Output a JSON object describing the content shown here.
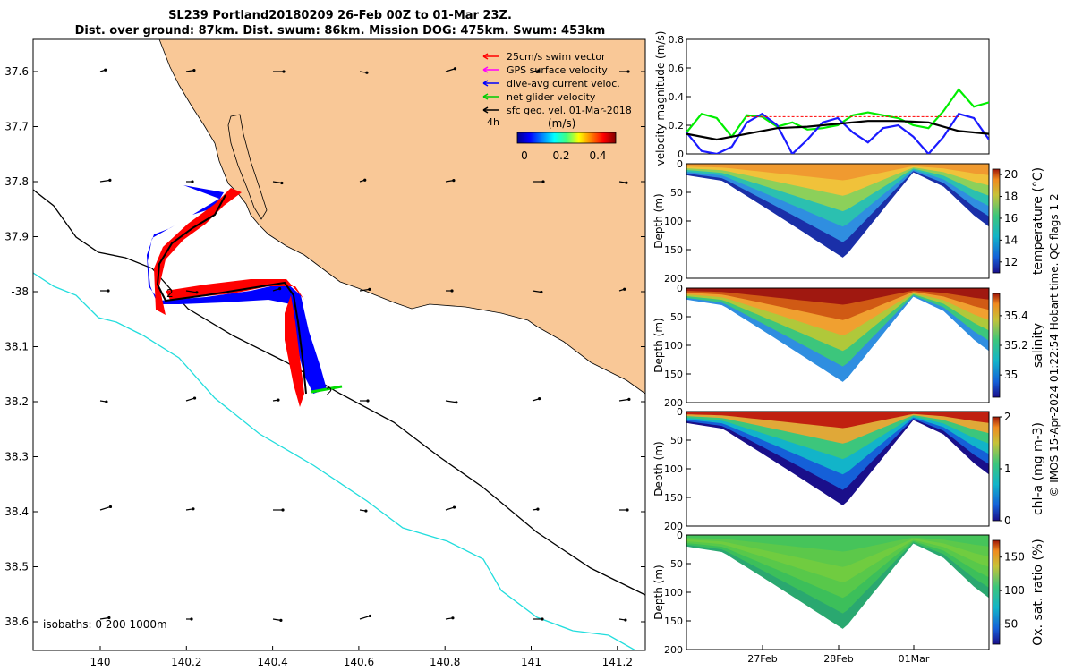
{
  "title": {
    "line1": "SL239 Portland20180209 26-Feb 00Z to 01-Mar 23Z.",
    "line2": "Dist. over ground: 87km. Dist. swum: 86km. Mission DOG: 475km. Swum: 453km"
  },
  "map": {
    "lat_ticks": [
      "37.6",
      "37.7",
      "37.8",
      "37.9",
      "-38",
      "38.1",
      "38.2",
      "38.3",
      "38.4",
      "38.5",
      "38.6"
    ],
    "lon_ticks": [
      "140",
      "140.2",
      "140.4",
      "140.6",
      "140.8",
      "141",
      "141.2"
    ],
    "legend": [
      {
        "label": "25cm/s swim vector",
        "color": "#ff0000"
      },
      {
        "label": "GPS surface velocity",
        "color": "#ff00ff"
      },
      {
        "label": "dive-avg current veloc.",
        "color": "#0000ff"
      },
      {
        "label": "net glider velocity",
        "color": "#00cc00"
      },
      {
        "label": "sfc geo. vel. 01-Mar-2018",
        "color": "#000000"
      }
    ],
    "interval_label": "4h",
    "colorbar_title": "(m/s)",
    "colorbar_ticks": [
      "0",
      "0.2",
      "0.4"
    ],
    "isobaths_label": "isobaths: 0   200  1000m",
    "marker_label": "2",
    "land_color": "#f9c897",
    "isobath_200_color": "#000000",
    "isobath_1000_color": "#22dddd"
  },
  "chart_data": [
    {
      "type": "line",
      "title": "",
      "ylabel": "velocity magnitude (m/s)",
      "ylim": [
        0,
        0.8
      ],
      "yticks": [
        "0",
        "0.2",
        "0.4",
        "0.6",
        "0.8"
      ],
      "x_days_span": [
        0,
        4
      ],
      "series": [
        {
          "color": "#00ee00",
          "x": [
            0,
            0.2,
            0.4,
            0.6,
            0.8,
            1.0,
            1.2,
            1.4,
            1.6,
            1.8,
            2.0,
            2.2,
            2.4,
            2.6,
            2.8,
            3.0,
            3.2,
            3.4,
            3.6,
            3.8,
            4.0
          ],
          "values": [
            0.15,
            0.28,
            0.25,
            0.12,
            0.27,
            0.26,
            0.19,
            0.22,
            0.17,
            0.18,
            0.2,
            0.27,
            0.29,
            0.27,
            0.25,
            0.2,
            0.18,
            0.3,
            0.45,
            0.33,
            0.36
          ]
        },
        {
          "color": "#1a1aff",
          "x": [
            0,
            0.2,
            0.4,
            0.6,
            0.8,
            1.0,
            1.2,
            1.4,
            1.6,
            1.8,
            2.0,
            2.2,
            2.4,
            2.6,
            2.8,
            3.0,
            3.2,
            3.4,
            3.6,
            3.8,
            4.0
          ],
          "values": [
            0.15,
            0.02,
            0.0,
            0.05,
            0.22,
            0.28,
            0.2,
            0.0,
            0.1,
            0.22,
            0.25,
            0.15,
            0.08,
            0.18,
            0.2,
            0.12,
            0.0,
            0.12,
            0.28,
            0.25,
            0.1
          ]
        },
        {
          "color": "#000000",
          "x": [
            0,
            0.4,
            0.8,
            1.2,
            1.6,
            2.0,
            2.4,
            2.8,
            3.2,
            3.6,
            4.0
          ],
          "values": [
            0.14,
            0.1,
            0.14,
            0.18,
            0.19,
            0.21,
            0.23,
            0.23,
            0.22,
            0.16,
            0.14
          ]
        },
        {
          "color": "#ff0000",
          "x": [
            0.8,
            3.6
          ],
          "values": [
            0.26,
            0.26
          ]
        }
      ]
    },
    {
      "type": "heatmap",
      "ylabel": "Depth (m)",
      "ylim": [
        0,
        200
      ],
      "yticks": [
        "0",
        "50",
        "100",
        "150",
        "200"
      ],
      "colorbar_label": "temperature (°C)",
      "colorbar_ticks": [
        "12",
        "14",
        "16",
        "18",
        "20"
      ],
      "colorbar_range": [
        11,
        20.5
      ]
    },
    {
      "type": "heatmap",
      "ylabel": "Depth (m)",
      "ylim": [
        0,
        200
      ],
      "yticks": [
        "0",
        "50",
        "100",
        "150",
        "200"
      ],
      "colorbar_label": "salinity",
      "colorbar_ticks": [
        "35",
        "35.2",
        "35.4"
      ],
      "colorbar_range": [
        34.85,
        35.55
      ]
    },
    {
      "type": "heatmap",
      "ylabel": "Depth (m)",
      "ylim": [
        0,
        200
      ],
      "yticks": [
        "0",
        "50",
        "100",
        "150",
        "200"
      ],
      "colorbar_label": "chl-a (mg m-3)",
      "colorbar_ticks": [
        "0",
        "1",
        "2"
      ],
      "colorbar_range": [
        0,
        2
      ]
    },
    {
      "type": "heatmap",
      "ylabel": "Depth (m)",
      "ylim": [
        0,
        200
      ],
      "yticks": [
        "0",
        "50",
        "100",
        "150",
        "200"
      ],
      "colorbar_label": "Ox. sat. ratio (%)",
      "colorbar_ticks": [
        "50",
        "100",
        "150"
      ],
      "colorbar_range": [
        20,
        175
      ],
      "xticks": [
        "27Feb",
        "28Feb",
        "01Mar"
      ]
    }
  ],
  "credit": "© IMOS 15-Apr-2024 01:22:54 Hobart time. QC flags 1  2"
}
